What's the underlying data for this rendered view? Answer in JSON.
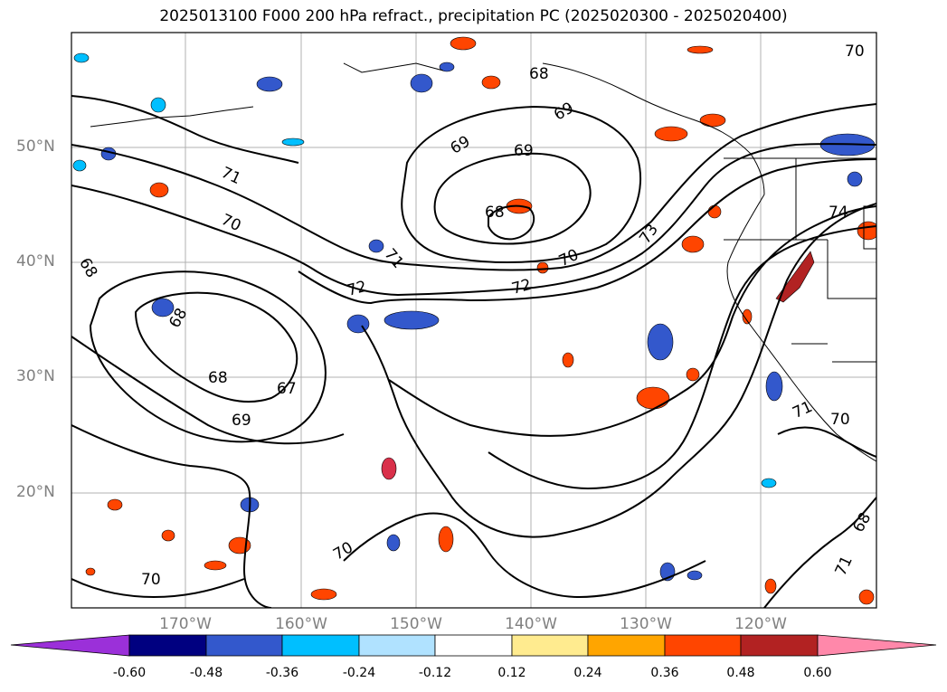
{
  "title": "2025013100 F000 200 hPa refract., precipitation PC (2025020300 - 2025020400)",
  "lat_labels": [
    "50°N",
    "40°N",
    "30°N",
    "20°N"
  ],
  "lon_labels": [
    "170°W",
    "160°W",
    "150°W",
    "140°W",
    "130°W",
    "120°W"
  ],
  "contour_labels": [
    "70",
    "68",
    "69",
    "69",
    "69",
    "71",
    "70",
    "68",
    "68",
    "71",
    "73",
    "70",
    "72",
    "72",
    "68",
    "68",
    "67",
    "69",
    "70",
    "71",
    "70",
    "71",
    "74",
    "70",
    "68"
  ],
  "colorbar": {
    "ticks": [
      "-0.60",
      "-0.48",
      "-0.36",
      "-0.24",
      "-0.12",
      "0.12",
      "0.24",
      "0.36",
      "0.48",
      "0.60"
    ],
    "colors": [
      "#9b30d9",
      "#000080",
      "#3358cc",
      "#00bfff",
      "#b0e2ff",
      "#ffffff",
      "#ffeb8f",
      "#ffa500",
      "#ff4500",
      "#b22222",
      "#ff88aa"
    ]
  },
  "colors": {
    "positive_fill": "#ff4500",
    "negative_fill": "#3358cc",
    "grid": "#b0b0b0",
    "contour": "#000000"
  }
}
